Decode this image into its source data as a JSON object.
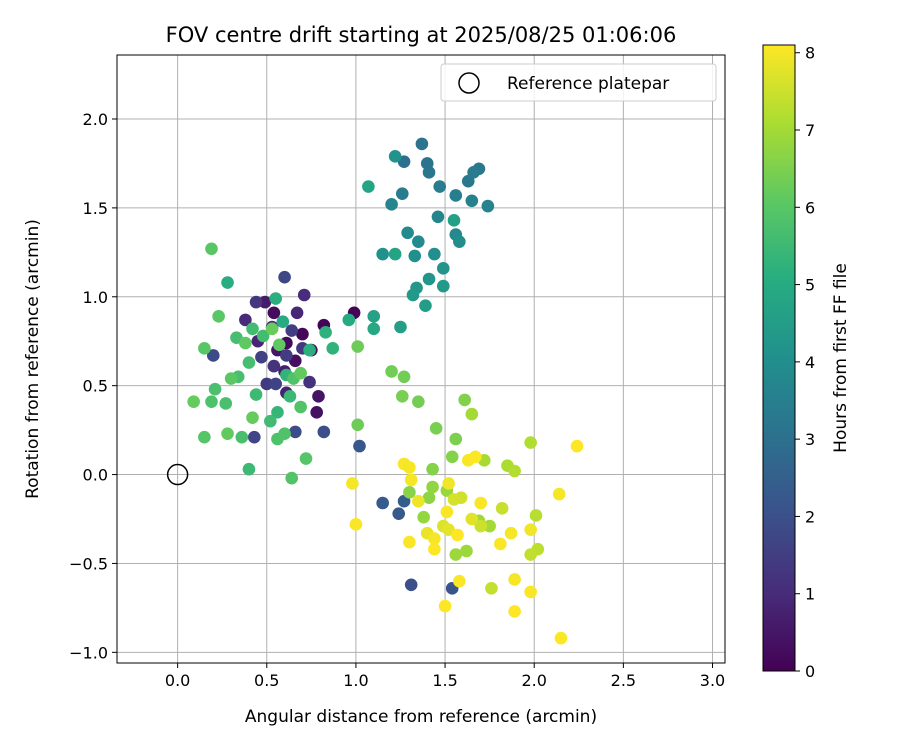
{
  "chart_data": {
    "type": "scatter",
    "title": "FOV centre drift starting at 2025/08/25 01:06:06",
    "xlabel": "Angular distance from reference (arcmin)",
    "ylabel": "Rotation from reference (arcmin)",
    "xlim": [
      -0.34,
      3.07
    ],
    "ylim": [
      -1.06,
      2.36
    ],
    "xticks": [
      "0.0",
      "0.5",
      "1.0",
      "1.5",
      "2.0",
      "2.5",
      "3.0"
    ],
    "yticks": [
      "−1.0",
      "−0.5",
      "0.0",
      "0.5",
      "1.0",
      "1.5",
      "2.0"
    ],
    "grid": true,
    "legend": {
      "position": "top-right",
      "entries": [
        "Reference platepar"
      ]
    },
    "reference_point": {
      "x": 0.0,
      "y": 0.0
    },
    "colorbar": {
      "label": "Hours from first FF file",
      "range": [
        0,
        8.1
      ],
      "ticks": [
        "0",
        "1",
        "2",
        "3",
        "4",
        "5",
        "6",
        "7",
        "8"
      ],
      "colormap": "viridis"
    },
    "series": [
      {
        "values": [
          [
            0.99,
            0.91,
            0.05
          ],
          [
            0.82,
            0.84,
            0.1
          ],
          [
            0.7,
            0.79,
            0.15
          ],
          [
            0.61,
            0.74,
            0.2
          ],
          [
            0.54,
            0.91,
            0.25
          ],
          [
            0.66,
            0.64,
            0.3
          ],
          [
            0.75,
            0.7,
            0.35
          ],
          [
            0.78,
            0.35,
            0.4
          ],
          [
            0.79,
            0.44,
            0.45
          ],
          [
            0.56,
            0.7,
            0.5
          ],
          [
            0.49,
            0.97,
            0.6
          ],
          [
            0.6,
            0.58,
            0.7
          ],
          [
            0.61,
            0.46,
            0.8
          ],
          [
            0.45,
            0.75,
            0.85
          ],
          [
            0.67,
            0.91,
            0.9
          ],
          [
            0.38,
            0.87,
            1.0
          ],
          [
            0.71,
            1.01,
            1.05
          ],
          [
            0.53,
            0.83,
            1.1
          ],
          [
            0.74,
            0.52,
            1.15
          ],
          [
            0.54,
            0.61,
            1.2
          ],
          [
            0.44,
            0.97,
            1.3
          ],
          [
            0.7,
            0.71,
            1.35
          ],
          [
            0.5,
            0.51,
            1.4
          ],
          [
            0.61,
            0.67,
            1.45
          ],
          [
            0.64,
            0.81,
            1.5
          ],
          [
            0.47,
            0.66,
            1.55
          ],
          [
            0.55,
            0.51,
            1.65
          ],
          [
            0.43,
            0.21,
            1.7
          ],
          [
            0.6,
            1.11,
            1.75
          ],
          [
            0.2,
            0.67,
            1.8
          ],
          [
            0.66,
            0.24,
            1.9
          ],
          [
            0.82,
            0.24,
            1.95
          ],
          [
            1.31,
            -0.62,
            2.0
          ],
          [
            1.54,
            -0.64,
            2.1
          ],
          [
            1.02,
            0.16,
            2.2
          ],
          [
            1.24,
            -0.22,
            2.3
          ],
          [
            1.15,
            -0.16,
            2.35
          ],
          [
            1.27,
            -0.15,
            2.4
          ],
          [
            1.27,
            1.76,
            3.0
          ],
          [
            1.37,
            1.86,
            3.1
          ],
          [
            1.4,
            1.75,
            3.15
          ],
          [
            1.41,
            1.7,
            3.2
          ],
          [
            1.69,
            1.72,
            3.25
          ],
          [
            1.63,
            1.65,
            3.3
          ],
          [
            1.66,
            1.7,
            3.35
          ],
          [
            1.26,
            1.58,
            3.4
          ],
          [
            1.47,
            1.62,
            3.45
          ],
          [
            1.56,
            1.57,
            3.5
          ],
          [
            1.65,
            1.54,
            3.55
          ],
          [
            1.74,
            1.51,
            3.6
          ],
          [
            1.2,
            1.52,
            3.65
          ],
          [
            1.46,
            1.45,
            3.7
          ],
          [
            1.56,
            1.35,
            3.8
          ],
          [
            1.29,
            1.36,
            3.85
          ],
          [
            1.35,
            1.31,
            3.9
          ],
          [
            1.58,
            1.31,
            3.95
          ],
          [
            1.44,
            1.24,
            4.0
          ],
          [
            1.33,
            1.23,
            4.05
          ],
          [
            1.15,
            1.24,
            4.1
          ],
          [
            1.22,
            1.79,
            4.15
          ],
          [
            1.49,
            1.16,
            4.2
          ],
          [
            1.41,
            1.1,
            4.25
          ],
          [
            1.34,
            1.05,
            4.3
          ],
          [
            1.49,
            1.06,
            4.35
          ],
          [
            1.32,
            1.01,
            4.4
          ],
          [
            1.39,
            0.95,
            4.5
          ],
          [
            1.25,
            0.83,
            4.55
          ],
          [
            1.55,
            1.43,
            4.6
          ],
          [
            1.1,
            0.89,
            4.65
          ],
          [
            1.22,
            1.24,
            4.7
          ],
          [
            1.07,
            1.62,
            4.8
          ],
          [
            1.1,
            0.82,
            4.9
          ],
          [
            0.96,
            0.87,
            4.95
          ],
          [
            0.59,
            0.86,
            5.0
          ],
          [
            0.28,
            1.08,
            5.05
          ],
          [
            0.55,
            0.99,
            5.1
          ],
          [
            0.74,
            0.7,
            5.15
          ],
          [
            0.83,
            0.8,
            5.2
          ],
          [
            0.87,
            0.71,
            5.25
          ],
          [
            0.61,
            0.56,
            5.3
          ],
          [
            0.56,
            0.35,
            5.35
          ],
          [
            0.63,
            0.44,
            5.45
          ],
          [
            0.4,
            0.03,
            5.5
          ],
          [
            0.44,
            0.45,
            5.5
          ],
          [
            0.52,
            0.3,
            5.55
          ],
          [
            0.48,
            0.78,
            5.6
          ],
          [
            0.42,
            0.82,
            5.6
          ],
          [
            0.4,
            0.63,
            5.65
          ],
          [
            0.33,
            0.77,
            5.65
          ],
          [
            0.34,
            0.55,
            5.7
          ],
          [
            0.36,
            0.21,
            5.7
          ],
          [
            0.27,
            0.4,
            5.75
          ],
          [
            0.21,
            0.48,
            5.75
          ],
          [
            0.19,
            0.41,
            5.8
          ],
          [
            0.56,
            0.2,
            5.8
          ],
          [
            0.6,
            0.23,
            5.85
          ],
          [
            0.65,
            0.54,
            5.85
          ],
          [
            0.69,
            0.38,
            5.9
          ],
          [
            0.64,
            -0.02,
            5.9
          ],
          [
            0.72,
            0.09,
            5.95
          ],
          [
            0.15,
            0.21,
            5.95
          ],
          [
            0.15,
            0.71,
            6.0
          ],
          [
            0.19,
            1.27,
            6.0
          ],
          [
            0.23,
            0.89,
            6.05
          ],
          [
            0.3,
            0.54,
            6.05
          ],
          [
            0.38,
            0.74,
            6.1
          ],
          [
            0.57,
            0.73,
            6.1
          ],
          [
            0.69,
            0.57,
            6.15
          ],
          [
            0.28,
            0.23,
            6.15
          ],
          [
            0.09,
            0.41,
            6.2
          ],
          [
            0.42,
            0.32,
            6.2
          ],
          [
            0.53,
            0.82,
            6.25
          ],
          [
            1.01,
            0.28,
            6.3
          ],
          [
            1.01,
            0.72,
            6.3
          ],
          [
            1.2,
            0.58,
            6.35
          ],
          [
            1.27,
            0.55,
            6.35
          ],
          [
            1.35,
            0.41,
            6.4
          ],
          [
            1.26,
            0.44,
            6.45
          ],
          [
            1.45,
            0.26,
            6.45
          ],
          [
            1.56,
            0.2,
            6.5
          ],
          [
            1.61,
            0.42,
            6.55
          ],
          [
            1.54,
            0.1,
            6.6
          ],
          [
            1.43,
            0.03,
            6.6
          ],
          [
            1.3,
            -0.1,
            6.65
          ],
          [
            1.41,
            -0.13,
            6.7
          ],
          [
            1.43,
            -0.07,
            6.75
          ],
          [
            1.38,
            -0.24,
            6.8
          ],
          [
            1.51,
            -0.09,
            6.85
          ],
          [
            1.56,
            -0.45,
            6.9
          ],
          [
            1.62,
            -0.43,
            6.9
          ],
          [
            1.69,
            -0.26,
            6.95
          ],
          [
            1.75,
            -0.29,
            7.0
          ],
          [
            1.65,
            0.34,
            7.0
          ],
          [
            1.72,
            0.08,
            7.05
          ],
          [
            1.85,
            0.05,
            7.1
          ],
          [
            1.98,
            0.18,
            7.15
          ],
          [
            1.89,
            0.02,
            7.2
          ],
          [
            2.01,
            -0.23,
            7.25
          ],
          [
            2.02,
            -0.42,
            7.3
          ],
          [
            1.98,
            -0.45,
            7.35
          ],
          [
            1.76,
            -0.64,
            7.4
          ],
          [
            1.82,
            -0.19,
            7.45
          ],
          [
            1.7,
            -0.29,
            7.5
          ],
          [
            1.59,
            -0.13,
            7.55
          ],
          [
            1.55,
            -0.14,
            7.6
          ],
          [
            1.49,
            -0.29,
            7.7
          ],
          [
            1.65,
            -0.25,
            7.75
          ],
          [
            1.52,
            -0.31,
            7.8
          ],
          [
            1.4,
            -0.33,
            7.85
          ],
          [
            1.35,
            -0.15,
            7.9
          ],
          [
            1.98,
            -0.31,
            7.95
          ],
          [
            2.14,
            -0.11,
            8.0
          ],
          [
            1.63,
            0.08,
            8.05
          ],
          [
            2.24,
            0.16,
            8.1
          ],
          [
            1.27,
            0.06,
            8.05
          ],
          [
            1.3,
            0.04,
            8.0
          ],
          [
            1.31,
            -0.03,
            8.0
          ],
          [
            1.52,
            -0.05,
            7.95
          ],
          [
            1.51,
            -0.21,
            8.05
          ],
          [
            1.57,
            -0.34,
            8.1
          ],
          [
            1.44,
            -0.36,
            8.0
          ],
          [
            1.44,
            -0.42,
            8.1
          ],
          [
            1.3,
            -0.38,
            8.05
          ],
          [
            1.5,
            -0.74,
            8.1
          ],
          [
            1.58,
            -0.6,
            8.05
          ],
          [
            1.89,
            -0.59,
            8.0
          ],
          [
            1.89,
            -0.77,
            8.1
          ],
          [
            1.98,
            -0.66,
            8.05
          ],
          [
            2.15,
            -0.92,
            8.1
          ],
          [
            1.87,
            -0.33,
            8.0
          ],
          [
            1.81,
            -0.39,
            8.05
          ],
          [
            1.7,
            -0.16,
            8.05
          ],
          [
            1.67,
            0.1,
            8.1
          ],
          [
            0.98,
            -0.05,
            8.0
          ],
          [
            1.0,
            -0.28,
            8.05
          ]
        ]
      }
    ]
  }
}
